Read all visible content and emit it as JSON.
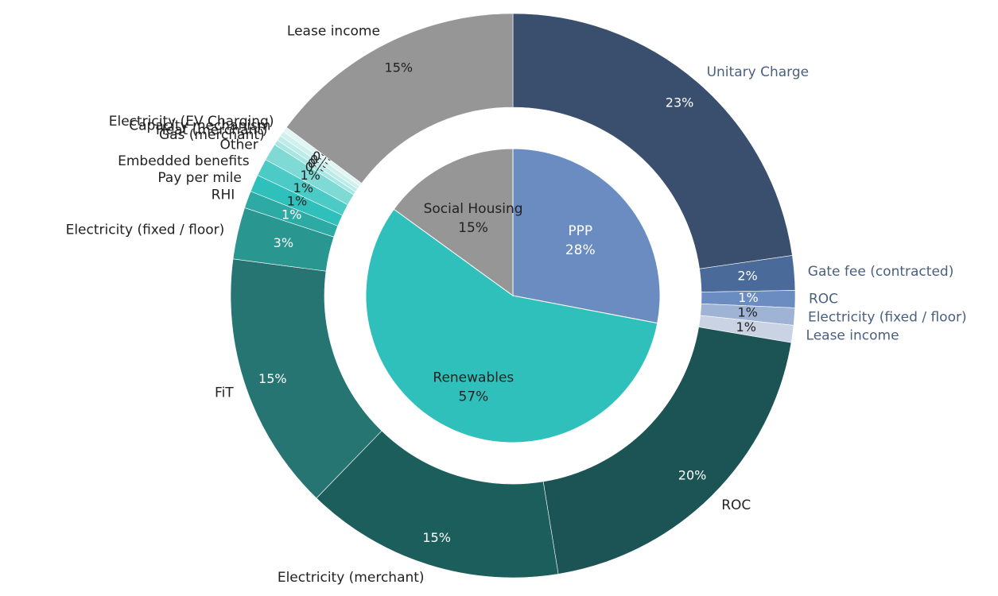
{
  "chart_data": {
    "type": "sunburst",
    "inner": {
      "categories": [
        "PPP",
        "Renewables",
        "Social Housing"
      ],
      "values": [
        28,
        57,
        15
      ],
      "value_labels": [
        "28%",
        "57%",
        "15%"
      ],
      "colors": [
        "#6b8cc0",
        "#30c0bb",
        "#969696"
      ]
    },
    "outer": {
      "categories": [
        "Unitary Charge",
        "Gate fee (contracted)",
        "ROC",
        "Electricity (fixed / floor)",
        "Lease income",
        "ROC",
        "Electricity (merchant)",
        "FiT",
        "Electricity (fixed / floor)",
        "RHI",
        "Pay per mile",
        "Embedded benefits",
        "Other",
        "Gas (merchant)",
        "Heat (merchant)",
        "Capacity mechanism",
        "Electricity (EV Charging)",
        "Lease income"
      ],
      "values": [
        23,
        2,
        1,
        1,
        1,
        20,
        15,
        15,
        3,
        1,
        1,
        1,
        1,
        0.3,
        0.3,
        0.3,
        0.3,
        15
      ],
      "value_labels": [
        "23%",
        "2%",
        "1%",
        "1%",
        "1%",
        "20%",
        "15%",
        "15%",
        "3%",
        "1%",
        "1%",
        "1%",
        "1%",
        "0%",
        "0%",
        "0%",
        "0%",
        "15%"
      ],
      "colors": [
        "#3a4e6e",
        "#4a6a9a",
        "#6b8cc0",
        "#9fb3d4",
        "#c9d3e3",
        "#1c5455",
        "#1c5e5c",
        "#267573",
        "#2a9690",
        "#2eaaa5",
        "#30c0bb",
        "#4ccbc6",
        "#7fd9d5",
        "#a8e6e3",
        "#bdebe9",
        "#d0f0ee",
        "#e0f5f4",
        "#969696"
      ]
    }
  }
}
